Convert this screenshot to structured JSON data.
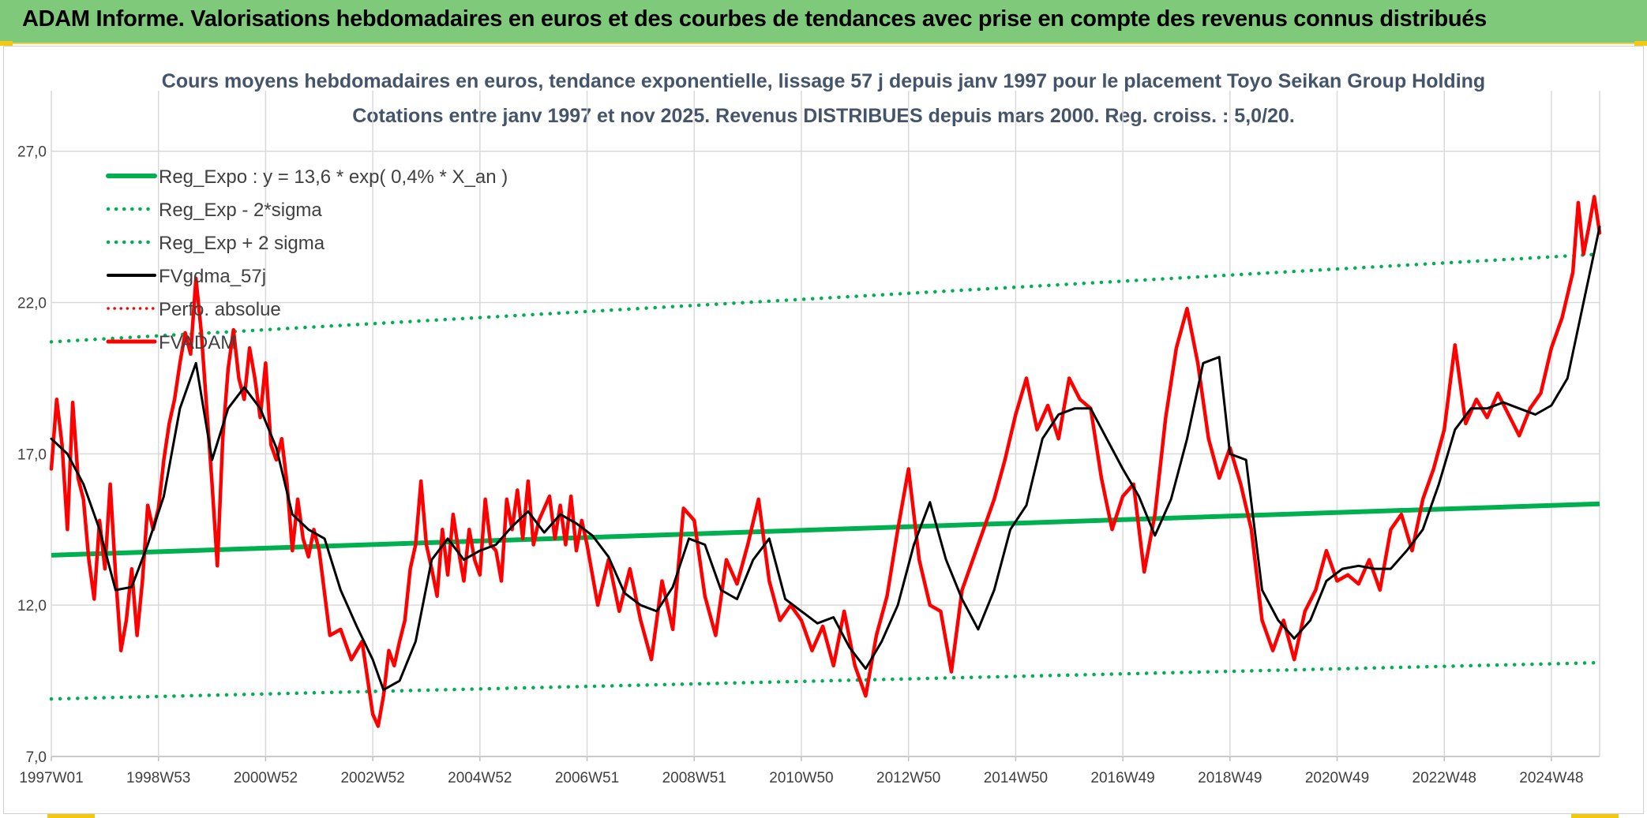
{
  "header": {
    "title": "ADAM Informe. Valorisations hebdomadaires en euros et des courbes de tendances avec prise en compte des revenus connus distribués"
  },
  "colors": {
    "banner": "#7fc97a",
    "reg_expo": "#00b050",
    "fv_gdma": "#000000",
    "fv_adam": "#ff0000",
    "grid": "#d9d9d9"
  },
  "chart_data": {
    "type": "line",
    "title_line1": "Cours moyens hebdomadaires en euros, tendance exponentielle, lissage 57 j depuis janv 1997 pour le placement Toyo Seikan Group Holding",
    "title_line2": "Cotations entre janv 1997 et nov 2025. Revenus DISTRIBUES depuis mars 2000. Reg. croiss. : 5,0/20.",
    "x_range": [
      1997.0,
      2025.9
    ],
    "ylim": [
      7.0,
      29.0
    ],
    "y_ticks": [
      "7,0",
      "12,0",
      "17,0",
      "22,0",
      "27,0"
    ],
    "y_tick_values": [
      7,
      12,
      17,
      22,
      27
    ],
    "x_ticks": [
      "1997W01",
      "1998W53",
      "2000W52",
      "2002W52",
      "2004W52",
      "2006W51",
      "2008W51",
      "2010W50",
      "2012W50",
      "2014W50",
      "2016W49",
      "2018W49",
      "2020W49",
      "2022W48",
      "2024W48"
    ],
    "x_tick_values": [
      1997.0,
      1999.0,
      2001.0,
      2003.0,
      2005.0,
      2007.0,
      2009.0,
      2011.0,
      2013.0,
      2015.0,
      2017.0,
      2019.0,
      2021.0,
      2023.0,
      2025.0
    ],
    "legend": [
      {
        "label": "Reg_Expo : y = 13,6 * exp( 0,4% *  X_an )",
        "style": "solid-green"
      },
      {
        "label": "Reg_Exp - 2*sigma",
        "style": "dotted-green"
      },
      {
        "label": "Reg_Exp + 2 sigma",
        "style": "dotted-green"
      },
      {
        "label": "FVgdma_57j",
        "style": "solid-black"
      },
      {
        "label": "Perfo. absolue",
        "style": "dotted-red"
      },
      {
        "label": "FVADAM",
        "style": "solid-red"
      }
    ],
    "series": [
      {
        "name": "Reg_Expo",
        "x": [
          1997.0,
          2025.9
        ],
        "values": [
          13.65,
          15.35
        ]
      },
      {
        "name": "Reg_Exp - 2*sigma",
        "x": [
          1997.0,
          2025.9
        ],
        "values": [
          8.9,
          10.1
        ]
      },
      {
        "name": "Reg_Exp + 2 sigma",
        "x": [
          1997.0,
          2025.9
        ],
        "values": [
          20.7,
          23.6
        ]
      },
      {
        "name": "FVgdma_57j",
        "x": [
          1997.0,
          1997.3,
          1997.6,
          1997.9,
          1998.2,
          1998.5,
          1998.8,
          1999.1,
          1999.4,
          1999.7,
          2000.0,
          2000.3,
          2000.6,
          2000.9,
          2001.2,
          2001.5,
          2001.8,
          2002.1,
          2002.4,
          2002.7,
          2003.0,
          2003.2,
          2003.5,
          2003.8,
          2004.1,
          2004.4,
          2004.7,
          2005.0,
          2005.3,
          2005.6,
          2005.9,
          2006.2,
          2006.5,
          2006.8,
          2007.1,
          2007.4,
          2007.7,
          2008.0,
          2008.3,
          2008.6,
          2008.9,
          2009.2,
          2009.5,
          2009.8,
          2010.1,
          2010.4,
          2010.7,
          2011.0,
          2011.3,
          2011.6,
          2011.9,
          2012.2,
          2012.5,
          2012.8,
          2013.1,
          2013.4,
          2013.7,
          2014.0,
          2014.3,
          2014.6,
          2014.9,
          2015.2,
          2015.5,
          2015.8,
          2016.1,
          2016.4,
          2016.7,
          2017.0,
          2017.3,
          2017.6,
          2017.9,
          2018.2,
          2018.5,
          2018.8,
          2019.0,
          2019.3,
          2019.6,
          2019.9,
          2020.2,
          2020.5,
          2020.8,
          2021.1,
          2021.4,
          2021.7,
          2022.0,
          2022.3,
          2022.6,
          2022.9,
          2023.2,
          2023.5,
          2023.8,
          2024.1,
          2024.4,
          2024.7,
          2025.0,
          2025.3,
          2025.6,
          2025.9
        ],
        "values": [
          17.5,
          17.0,
          16.0,
          14.5,
          12.5,
          12.6,
          14.0,
          15.6,
          18.5,
          20.0,
          16.8,
          18.5,
          19.2,
          18.5,
          17.2,
          15.0,
          14.5,
          14.2,
          12.5,
          11.3,
          10.2,
          9.2,
          9.5,
          10.8,
          13.5,
          14.2,
          13.5,
          13.8,
          14.0,
          14.6,
          15.1,
          14.4,
          15.0,
          14.7,
          14.3,
          13.6,
          12.4,
          12.0,
          11.8,
          12.6,
          14.2,
          14.0,
          12.5,
          12.2,
          13.5,
          14.2,
          12.2,
          11.8,
          11.4,
          11.6,
          10.6,
          9.9,
          10.8,
          12.0,
          14.0,
          15.4,
          13.5,
          12.2,
          11.2,
          12.5,
          14.5,
          15.3,
          17.5,
          18.3,
          18.5,
          18.5,
          17.5,
          16.5,
          15.6,
          14.3,
          15.5,
          17.5,
          20.0,
          20.2,
          17.0,
          16.8,
          12.5,
          11.5,
          10.9,
          11.5,
          12.8,
          13.2,
          13.3,
          13.2,
          13.2,
          13.8,
          14.5,
          16.0,
          17.8,
          18.5,
          18.5,
          18.7,
          18.5,
          18.3,
          18.6,
          19.5,
          22.0,
          24.5
        ]
      },
      {
        "name": "FVADAM",
        "x": [
          1997.0,
          1997.1,
          1997.2,
          1997.3,
          1997.4,
          1997.5,
          1997.6,
          1997.7,
          1997.8,
          1997.9,
          1998.0,
          1998.1,
          1998.2,
          1998.3,
          1998.4,
          1998.5,
          1998.6,
          1998.7,
          1998.8,
          1998.9,
          1999.0,
          1999.1,
          1999.2,
          1999.3,
          1999.4,
          1999.5,
          1999.6,
          1999.7,
          1999.8,
          1999.9,
          2000.0,
          2000.1,
          2000.2,
          2000.3,
          2000.4,
          2000.5,
          2000.6,
          2000.7,
          2000.8,
          2000.9,
          2001.0,
          2001.1,
          2001.2,
          2001.3,
          2001.4,
          2001.5,
          2001.6,
          2001.7,
          2001.8,
          2001.9,
          2002.0,
          2002.2,
          2002.4,
          2002.6,
          2002.8,
          2003.0,
          2003.1,
          2003.2,
          2003.3,
          2003.4,
          2003.5,
          2003.6,
          2003.7,
          2003.8,
          2003.9,
          2004.0,
          2004.1,
          2004.2,
          2004.3,
          2004.4,
          2004.5,
          2004.6,
          2004.7,
          2004.8,
          2004.9,
          2005.0,
          2005.1,
          2005.2,
          2005.3,
          2005.4,
          2005.5,
          2005.6,
          2005.7,
          2005.8,
          2005.9,
          2006.0,
          2006.1,
          2006.2,
          2006.3,
          2006.4,
          2006.5,
          2006.6,
          2006.7,
          2006.8,
          2006.9,
          2007.0,
          2007.2,
          2007.4,
          2007.6,
          2007.8,
          2008.0,
          2008.2,
          2008.4,
          2008.6,
          2008.8,
          2009.0,
          2009.2,
          2009.4,
          2009.6,
          2009.8,
          2010.0,
          2010.2,
          2010.4,
          2010.6,
          2010.8,
          2011.0,
          2011.2,
          2011.4,
          2011.6,
          2011.8,
          2012.0,
          2012.2,
          2012.4,
          2012.6,
          2012.8,
          2013.0,
          2013.2,
          2013.4,
          2013.6,
          2013.8,
          2014.0,
          2014.2,
          2014.4,
          2014.6,
          2014.8,
          2015.0,
          2015.2,
          2015.4,
          2015.6,
          2015.8,
          2016.0,
          2016.2,
          2016.4,
          2016.6,
          2016.8,
          2017.0,
          2017.2,
          2017.4,
          2017.6,
          2017.8,
          2018.0,
          2018.2,
          2018.4,
          2018.6,
          2018.8,
          2019.0,
          2019.2,
          2019.4,
          2019.6,
          2019.8,
          2020.0,
          2020.2,
          2020.4,
          2020.6,
          2020.8,
          2021.0,
          2021.2,
          2021.4,
          2021.6,
          2021.8,
          2022.0,
          2022.2,
          2022.4,
          2022.6,
          2022.8,
          2023.0,
          2023.2,
          2023.4,
          2023.6,
          2023.8,
          2024.0,
          2024.2,
          2024.4,
          2024.6,
          2024.8,
          2025.0,
          2025.2,
          2025.4,
          2025.5,
          2025.6,
          2025.7,
          2025.8,
          2025.9
        ],
        "values": [
          16.5,
          18.8,
          17.3,
          14.5,
          18.7,
          16.2,
          15.5,
          13.5,
          12.2,
          14.8,
          13.2,
          16.0,
          13.0,
          10.5,
          11.5,
          13.2,
          11.0,
          12.8,
          15.3,
          14.5,
          15.2,
          16.8,
          18.0,
          18.8,
          20.0,
          21.0,
          20.3,
          22.8,
          21.0,
          18.5,
          16.0,
          13.3,
          17.5,
          19.8,
          21.1,
          19.5,
          18.8,
          20.5,
          19.5,
          18.2,
          20.0,
          17.3,
          16.8,
          17.5,
          16.0,
          13.8,
          15.5,
          14.2,
          13.6,
          14.5,
          13.8,
          11.0,
          11.2,
          10.2,
          10.8,
          8.4,
          8.0,
          9.0,
          10.5,
          10.0,
          10.8,
          11.5,
          13.2,
          14.0,
          16.1,
          14.0,
          13.2,
          12.3,
          14.5,
          13.0,
          15.0,
          13.8,
          12.8,
          14.5,
          13.5,
          13.0,
          15.5,
          14.0,
          13.8,
          12.8,
          15.5,
          14.5,
          15.8,
          14.2,
          16.1,
          14.0,
          14.8,
          15.2,
          15.6,
          14.2,
          15.3,
          14.0,
          15.6,
          13.8,
          14.8,
          14.0,
          12.0,
          13.5,
          11.8,
          13.2,
          11.5,
          10.2,
          12.8,
          11.2,
          15.2,
          14.8,
          12.3,
          11.0,
          13.5,
          12.7,
          14.0,
          15.5,
          12.8,
          11.5,
          12.0,
          11.5,
          10.5,
          11.3,
          10.0,
          11.8,
          10.0,
          9.0,
          11.0,
          12.3,
          14.5,
          16.5,
          13.5,
          12.0,
          11.8,
          9.8,
          12.5,
          13.5,
          14.5,
          15.5,
          16.8,
          18.3,
          19.5,
          17.8,
          18.6,
          17.5,
          19.5,
          18.8,
          18.5,
          16.2,
          14.5,
          15.6,
          16.0,
          13.1,
          15.0,
          18.2,
          20.5,
          21.8,
          20.0,
          17.5,
          16.2,
          17.2,
          16.0,
          14.5,
          11.5,
          10.5,
          11.5,
          10.2,
          11.8,
          12.5,
          13.8,
          12.8,
          13.0,
          12.7,
          13.5,
          12.5,
          14.5,
          15.0,
          13.8,
          15.5,
          16.5,
          17.8,
          20.6,
          18.0,
          18.8,
          18.2,
          19.0,
          18.3,
          17.6,
          18.5,
          19.0,
          20.5,
          21.5,
          23.0,
          25.3,
          23.6,
          24.5,
          25.5,
          24.3
        ]
      }
    ]
  }
}
